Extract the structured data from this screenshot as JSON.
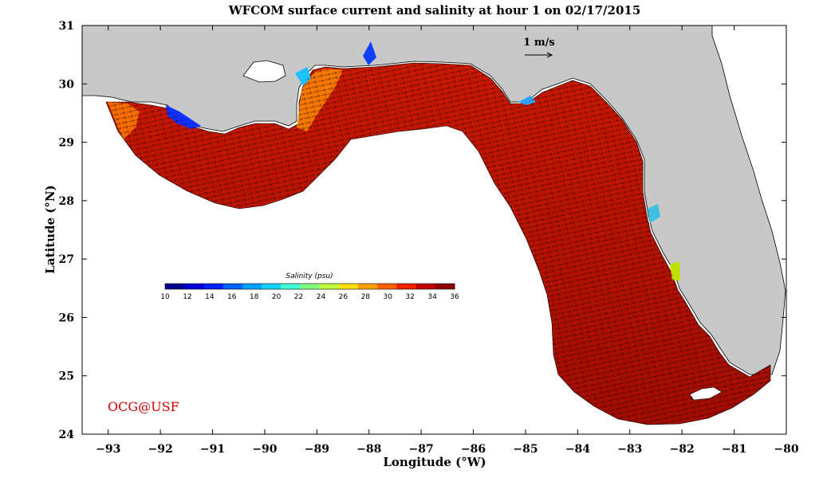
{
  "title": "WFCOM surface current and salinity at hour 1 on 02/17/2015",
  "xlabel": "Longitude (°W)",
  "ylabel": "Latitude (°N)",
  "x_ticks": [
    "−93",
    "−92",
    "−91",
    "−90",
    "−89",
    "−88",
    "−87",
    "−86",
    "−85",
    "−84",
    "−83",
    "−82",
    "−81",
    "−80"
  ],
  "y_ticks": [
    "24",
    "25",
    "26",
    "27",
    "28",
    "29",
    "30",
    "31"
  ],
  "x_range": [
    -93.5,
    -80
  ],
  "y_range": [
    24,
    31
  ],
  "colorbar": {
    "title": "Salinity (psu)",
    "ticks": [
      "10",
      "12",
      "14",
      "16",
      "18",
      "20",
      "22",
      "24",
      "26",
      "28",
      "30",
      "32",
      "34",
      "36"
    ],
    "range": [
      10,
      36
    ],
    "colors": [
      "#00008f",
      "#0000d4",
      "#0020ff",
      "#0060ff",
      "#00a0ff",
      "#10d0ff",
      "#40ffd0",
      "#80ff80",
      "#c0ff40",
      "#ffe000",
      "#ffa000",
      "#ff6000",
      "#f02000",
      "#c00000",
      "#8f0000"
    ]
  },
  "scale_arrow_label": "1 m/s",
  "credit": "OCG@USF",
  "colors": {
    "land": "#c8c8c8",
    "ocean_model": "#b01000",
    "outside": "#ffffff"
  }
}
